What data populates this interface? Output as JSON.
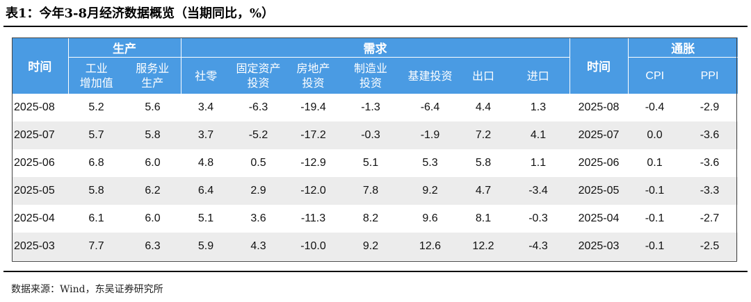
{
  "title": "表1：今年3-8月经济数据概览（当期同比，%）",
  "header": {
    "time": "时间",
    "group_production": "生产",
    "group_demand": "需求",
    "group_inflation": "通胀",
    "time_right": "时间",
    "columns": {
      "industrial": [
        "工业",
        "增加值"
      ],
      "services": [
        "服务业",
        "生产"
      ],
      "retail": [
        "社零"
      ],
      "fai": [
        "固定资产",
        "投资"
      ],
      "real_estate": [
        "房地产",
        "投资"
      ],
      "manufacturing": [
        "制造业",
        "投资"
      ],
      "infrastructure": [
        "基建投资"
      ],
      "exports": [
        "出口"
      ],
      "imports": [
        "进口"
      ],
      "cpi": [
        "CPI"
      ],
      "ppi": [
        "PPI"
      ]
    }
  },
  "rows": [
    {
      "month": "2025-08",
      "industrial": "5.2",
      "services": "5.6",
      "retail": "3.4",
      "fai": "-6.3",
      "real_estate": "-19.4",
      "manufacturing": "-1.3",
      "infrastructure": "-6.4",
      "exports": "4.4",
      "imports": "1.3",
      "month2": "2025-08",
      "cpi": "-0.4",
      "ppi": "-2.9"
    },
    {
      "month": "2025-07",
      "industrial": "5.7",
      "services": "5.8",
      "retail": "3.7",
      "fai": "-5.2",
      "real_estate": "-17.2",
      "manufacturing": "-0.3",
      "infrastructure": "-1.9",
      "exports": "7.2",
      "imports": "4.1",
      "month2": "2025-07",
      "cpi": "0.0",
      "ppi": "-3.6"
    },
    {
      "month": "2025-06",
      "industrial": "6.8",
      "services": "6.0",
      "retail": "4.8",
      "fai": "0.5",
      "real_estate": "-12.9",
      "manufacturing": "5.1",
      "infrastructure": "5.3",
      "exports": "5.8",
      "imports": "1.1",
      "month2": "2025-06",
      "cpi": "0.1",
      "ppi": "-3.6"
    },
    {
      "month": "2025-05",
      "industrial": "5.8",
      "services": "6.2",
      "retail": "6.4",
      "fai": "2.9",
      "real_estate": "-12.0",
      "manufacturing": "7.8",
      "infrastructure": "9.2",
      "exports": "4.7",
      "imports": "-3.4",
      "month2": "2025-05",
      "cpi": "-0.1",
      "ppi": "-3.3"
    },
    {
      "month": "2025-04",
      "industrial": "6.1",
      "services": "6.0",
      "retail": "5.1",
      "fai": "3.6",
      "real_estate": "-11.3",
      "manufacturing": "8.2",
      "infrastructure": "9.6",
      "exports": "8.1",
      "imports": "-0.3",
      "month2": "2025-04",
      "cpi": "-0.1",
      "ppi": "-2.7"
    },
    {
      "month": "2025-03",
      "industrial": "7.7",
      "services": "6.3",
      "retail": "5.9",
      "fai": "4.3",
      "real_estate": "-10.0",
      "manufacturing": "9.2",
      "infrastructure": "12.6",
      "exports": "12.2",
      "imports": "-4.3",
      "month2": "2025-03",
      "cpi": "-0.1",
      "ppi": "-2.5"
    }
  ],
  "source": "数据来源：Wind，东吴证券研究所",
  "colors": {
    "header_bg": "#4a9be3",
    "alt_row_bg": "#ececec"
  }
}
